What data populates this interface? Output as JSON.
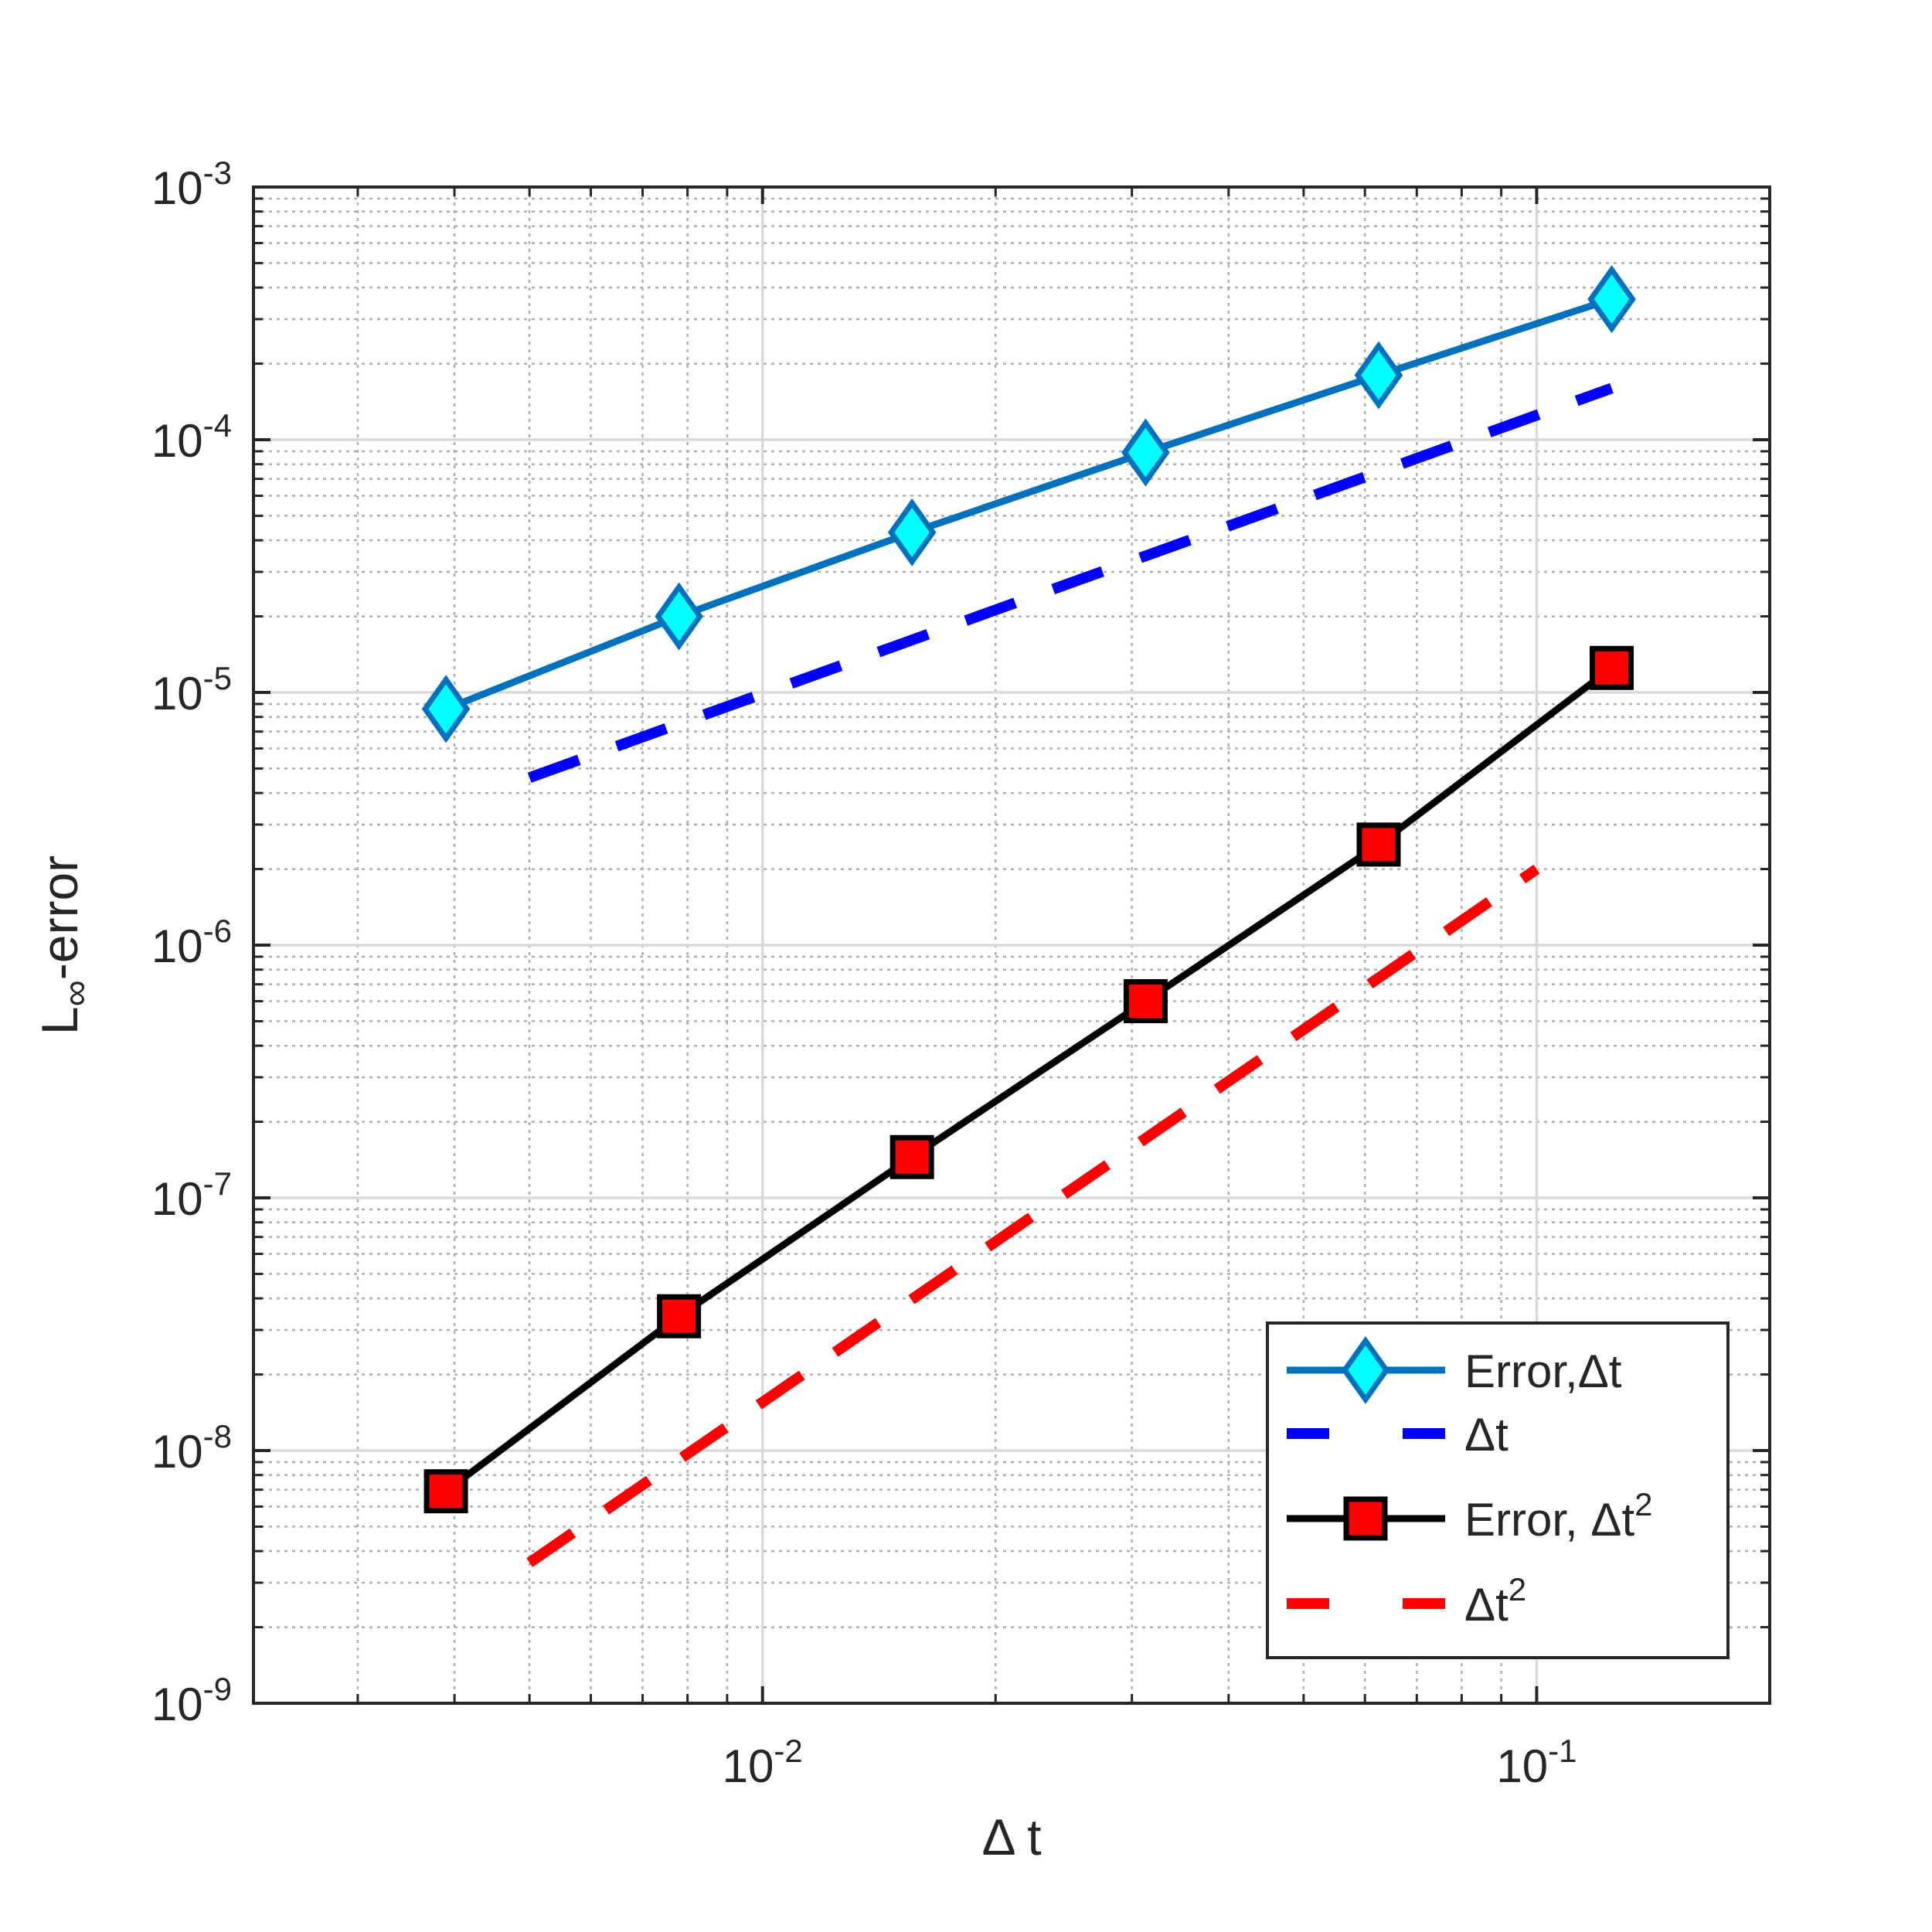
{
  "chart_data": {
    "type": "line",
    "xscale": "log",
    "yscale": "log",
    "xlim": [
      0.0022,
      0.2
    ],
    "ylim": [
      1e-09,
      0.001
    ],
    "grid": true,
    "minor_grid": true,
    "xlabel": "Δ t",
    "ylabel_main": "L",
    "ylabel_sub": "∞",
    "ylabel_rest": "-error",
    "x_ticks": [
      {
        "value": 0.01,
        "base": "10",
        "exp": "-2"
      },
      {
        "value": 0.1,
        "base": "10",
        "exp": "-1"
      }
    ],
    "y_ticks": [
      {
        "value": 1e-09,
        "base": "10",
        "exp": "-9"
      },
      {
        "value": 1e-08,
        "base": "10",
        "exp": "-8"
      },
      {
        "value": 1e-07,
        "base": "10",
        "exp": "-7"
      },
      {
        "value": 1e-06,
        "base": "10",
        "exp": "-6"
      },
      {
        "value": 1e-05,
        "base": "10",
        "exp": "-5"
      },
      {
        "value": 0.0001,
        "base": "10",
        "exp": "-4"
      },
      {
        "value": 0.001,
        "base": "10",
        "exp": "-3"
      }
    ],
    "legend_position": "bottom-right",
    "series": [
      {
        "name": "Error,Δt",
        "legend_text": "Error,Δt",
        "legend_sup": "",
        "style": "solid",
        "marker": "diamond",
        "line_color": "#0072BD",
        "marker_fill": "#00FFFF",
        "marker_edge": "#0072BD",
        "x": [
          0.0039,
          0.0078,
          0.0156,
          0.03125,
          0.0625,
          0.125
        ],
        "y": [
          8.6e-06,
          2e-05,
          4.3e-05,
          8.9e-05,
          0.00018,
          0.00036
        ]
      },
      {
        "name": "Δt",
        "legend_text": "Δt",
        "legend_sup": "",
        "style": "dashed",
        "marker": "none",
        "line_color": "#0000FF",
        "x": [
          0.005,
          0.125
        ],
        "y": [
          4.6e-06,
          0.00016
        ]
      },
      {
        "name": "Error, Δt2",
        "legend_text": "Error, Δt",
        "legend_sup": "2",
        "style": "solid",
        "marker": "square",
        "line_color": "#000000",
        "marker_fill": "#FF0000",
        "marker_edge": "#000000",
        "x": [
          0.0039,
          0.0078,
          0.0156,
          0.03125,
          0.0625,
          0.125
        ],
        "y": [
          6.9e-09,
          3.4e-08,
          1.45e-07,
          6e-07,
          2.5e-06,
          1.25e-05
        ]
      },
      {
        "name": "Δt2",
        "legend_text": "Δt",
        "legend_sup": "2",
        "style": "dashed",
        "marker": "none",
        "line_color": "#FF0000",
        "x": [
          0.005,
          0.1
        ],
        "y": [
          3.6e-09,
          2e-06
        ]
      }
    ]
  }
}
